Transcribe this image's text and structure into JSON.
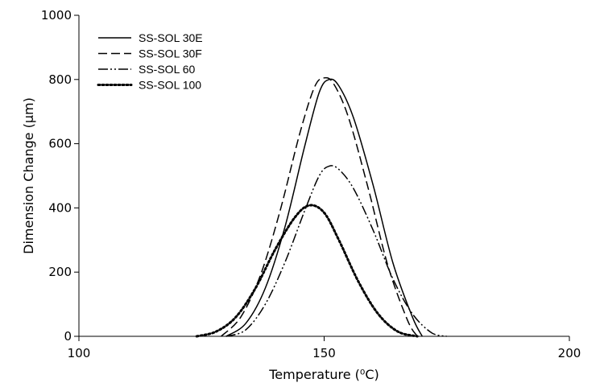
{
  "chart_data": {
    "type": "line",
    "title": "",
    "xlabel": "Temperature (⁰C)",
    "ylabel": "Dimension Change (μm)",
    "xlim": [
      100,
      200
    ],
    "ylim": [
      0,
      1000
    ],
    "xticks": [
      100,
      150,
      200
    ],
    "yticks": [
      0,
      200,
      400,
      600,
      800,
      1000
    ],
    "grid": false,
    "legend_position": "top-left",
    "series": [
      {
        "name": "SS-SOL 30E",
        "style": "solid",
        "color": "#000000",
        "x": [
          130,
          134,
          138,
          142,
          146,
          149,
          151,
          153,
          156,
          160,
          164,
          168,
          170
        ],
        "y": [
          0,
          40,
          150,
          340,
          590,
          760,
          800,
          780,
          680,
          470,
          230,
          60,
          0
        ]
      },
      {
        "name": "SS-SOL 30F",
        "style": "dashed",
        "color": "#000000",
        "x": [
          129,
          133,
          137,
          141,
          145,
          148,
          150,
          152,
          155,
          159,
          163,
          167,
          169
        ],
        "y": [
          0,
          60,
          190,
          390,
          630,
          775,
          805,
          785,
          680,
          460,
          220,
          50,
          0
        ]
      },
      {
        "name": "SS-SOL 60",
        "style": "dashdotdot",
        "color": "#000000",
        "x": [
          130,
          134,
          138,
          142,
          146,
          149,
          151,
          153,
          156,
          160,
          164,
          168,
          172,
          175
        ],
        "y": [
          0,
          20,
          100,
          230,
          390,
          500,
          530,
          520,
          460,
          330,
          180,
          70,
          10,
          0
        ]
      },
      {
        "name": "SS-SOL 100",
        "style": "dotted",
        "color": "#000000",
        "x": [
          124,
          128,
          132,
          136,
          140,
          144,
          147,
          150,
          153,
          157,
          161,
          165,
          169
        ],
        "y": [
          0,
          15,
          60,
          150,
          270,
          370,
          408,
          385,
          300,
          170,
          70,
          15,
          0
        ]
      }
    ]
  }
}
